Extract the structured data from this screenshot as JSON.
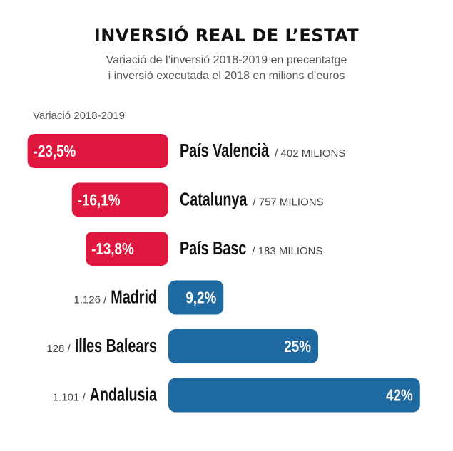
{
  "title": "INVERSIÓ REAL DE L’ESTAT",
  "subtitle_line1": "Variació de l’inversió 2018-2019 en precentatge",
  "subtitle_line2": "i inversió executada el 2018 en milions d’euros",
  "variation_label": "Variació 2018-2019",
  "colors": {
    "negative": "#e0173f",
    "positive": "#1e6aa0",
    "bar_text": "#ffffff"
  },
  "chart_data": {
    "type": "bar",
    "orientation": "horizontal",
    "title": "INVERSIÓ REAL DE L’ESTAT",
    "categories": [
      "País Valencià",
      "Catalunya",
      "País Basc",
      "Madrid",
      "Illes Balears",
      "Andalusia"
    ],
    "values": [
      -23.5,
      -16.1,
      -13.8,
      9.2,
      25,
      42
    ],
    "value_labels": [
      "-23,5%",
      "-16,1%",
      "-13,8%",
      "9,2%",
      "25%",
      "42%"
    ],
    "investment_labels": [
      "/ 402 MILIONS",
      "/ 757 MILIONS",
      "/ 183 MILIONS",
      "1.126 /",
      "128 /",
      "1.101 /"
    ],
    "investment_millions": [
      402,
      757,
      183,
      1126,
      128,
      1101
    ],
    "unit": "%"
  }
}
